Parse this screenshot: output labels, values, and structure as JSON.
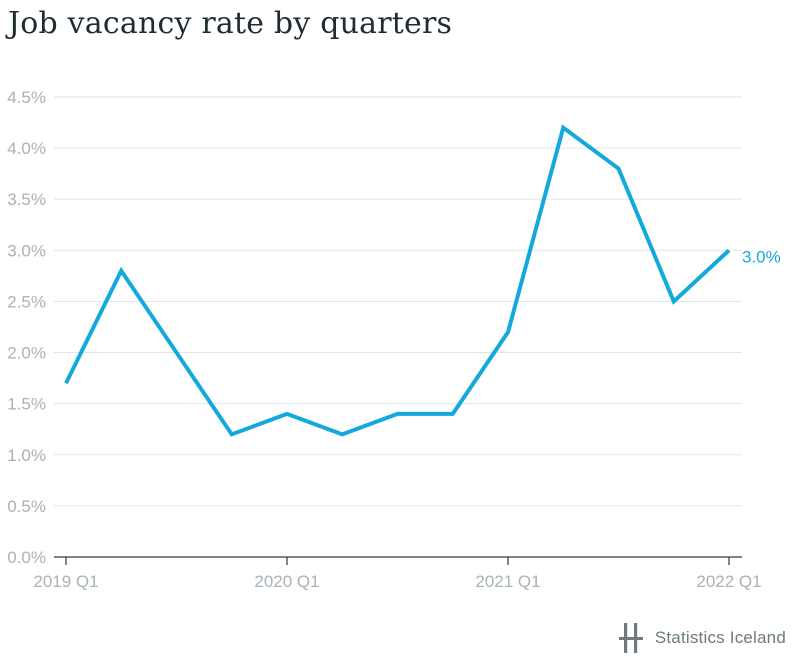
{
  "chart_data": {
    "type": "line",
    "title": "Job vacancy rate by quarters",
    "x_tick_labels": [
      "2019 Q1",
      "2020 Q1",
      "2021 Q1",
      "2022 Q1"
    ],
    "y_tick_labels": [
      "0.0%",
      "0.5%",
      "1.0%",
      "1.5%",
      "2.0%",
      "2.5%",
      "3.0%",
      "3.5%",
      "4.0%",
      "4.5%"
    ],
    "ylim": [
      0,
      4.5
    ],
    "grid": true,
    "series": [
      {
        "color": "#14a9dd",
        "x": [
          "2019 Q1",
          "2019 Q2",
          "2019 Q3",
          "2019 Q4",
          "2020 Q1",
          "2020 Q2",
          "2020 Q3",
          "2020 Q4",
          "2021 Q1",
          "2021 Q2",
          "2021 Q3",
          "2021 Q4",
          "2022 Q1"
        ],
        "values": [
          1.7,
          2.8,
          2.0,
          1.2,
          1.4,
          1.2,
          1.4,
          1.4,
          2.2,
          4.2,
          3.8,
          2.5,
          3.0
        ]
      }
    ],
    "end_label": "3.0%"
  },
  "branding": {
    "name": "Statistics Iceland",
    "logo_icon": "statistics-iceland-logo-icon"
  },
  "colors": {
    "line": "#14a9dd",
    "grid": "#e3e6e8",
    "axis": "#2d3a40",
    "tick_text": "#a9b2b8"
  }
}
